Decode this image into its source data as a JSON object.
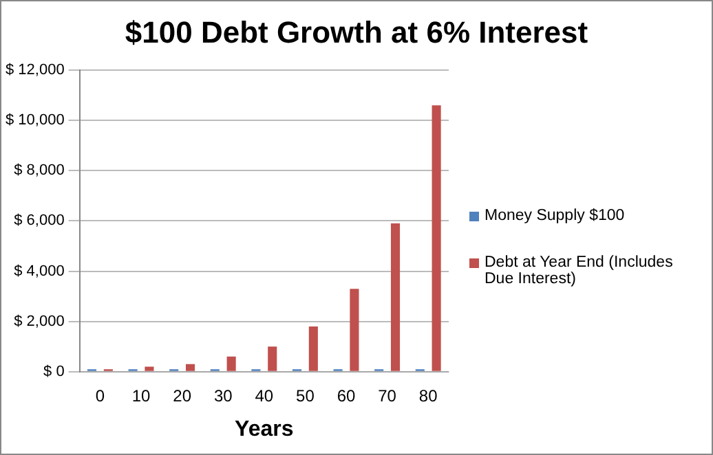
{
  "chart_data": {
    "type": "bar",
    "title": "$100 Debt Growth at 6% Interest",
    "xlabel": "Years",
    "categories": [
      "0",
      "10",
      "20",
      "30",
      "40",
      "50",
      "60",
      "70",
      "80"
    ],
    "series": [
      {
        "name": "Money Supply $100",
        "color": "#4f81bd",
        "values": [
          100,
          100,
          100,
          100,
          100,
          100,
          100,
          100,
          100
        ]
      },
      {
        "name": "Debt at Year End   (Includes Due Interest)",
        "color": "#c0504d",
        "values": [
          100,
          200,
          300,
          600,
          1000,
          1800,
          3300,
          5900,
          10600
        ]
      }
    ],
    "ylim": [
      0,
      12000
    ],
    "yticks": [
      {
        "value": 0,
        "label": "$ 0"
      },
      {
        "value": 2000,
        "label": "$ 2,000"
      },
      {
        "value": 4000,
        "label": "$ 4,000"
      },
      {
        "value": 6000,
        "label": "$ 6,000"
      },
      {
        "value": 8000,
        "label": "$ 8,000"
      },
      {
        "value": 10000,
        "label": "$ 10,000"
      },
      {
        "value": 12000,
        "label": "$ 12,000"
      }
    ],
    "grid": "y",
    "legend": "right"
  }
}
